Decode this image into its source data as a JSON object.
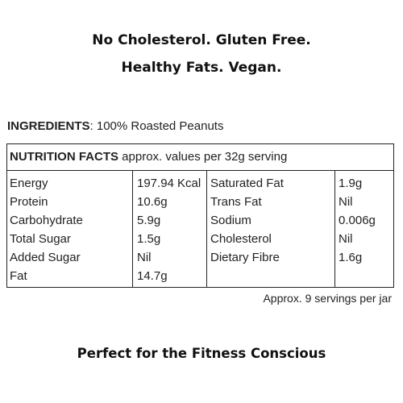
{
  "headline": {
    "line1": "No Cholesterol. Gluten Free.",
    "line2": "Healthy Fats. Vegan."
  },
  "ingredients": {
    "label": "INGREDIENTS",
    "value": ": 100% Roasted Peanuts"
  },
  "nutrition": {
    "title": "NUTRITION FACTS",
    "subtitle": " approx. values per 32g serving",
    "left": [
      {
        "name": "Energy",
        "value": "197.94 Kcal"
      },
      {
        "name": "Protein",
        "value": "10.6g"
      },
      {
        "name": "Carbohydrate",
        "value": "5.9g"
      },
      {
        "name": "Total Sugar",
        "value": "1.5g"
      },
      {
        "name": "Added Sugar",
        "value": "Nil"
      },
      {
        "name": "Fat",
        "value": "14.7g"
      }
    ],
    "right": [
      {
        "name": "Saturated Fat",
        "value": "1.9g"
      },
      {
        "name": "Trans Fat",
        "value": "Nil"
      },
      {
        "name": "Sodium",
        "value": "0.006g"
      },
      {
        "name": "Cholesterol",
        "value": "Nil"
      },
      {
        "name": "Dietary Fibre",
        "value": "1.6g"
      }
    ],
    "footnote": "Approx. 9 servings per jar"
  },
  "tagline": "Perfect for the Fitness Conscious"
}
